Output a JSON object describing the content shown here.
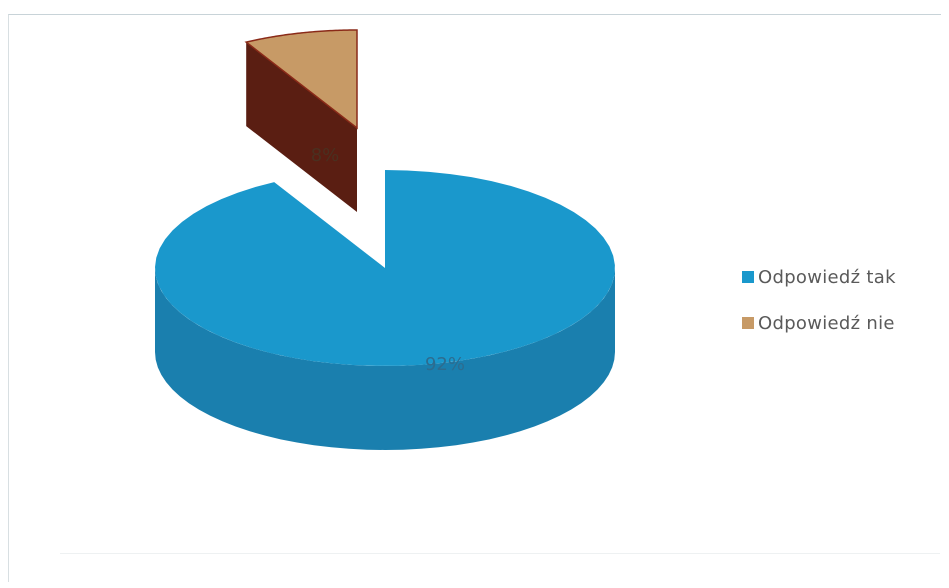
{
  "chart_data": {
    "type": "pie",
    "style": "3d-exploded",
    "slices": [
      {
        "label": "Odpowiedź tak",
        "value": 92,
        "data_label": "92%",
        "color": "#1a98cc",
        "side_color": "#1a7fae",
        "label_color": "#2d6c8f"
      },
      {
        "label": "Odpowiedź nie",
        "value": 8,
        "data_label": "8%",
        "color": "#c79a66",
        "side_color": "#5a1e12",
        "label_color": "#4a3020"
      }
    ],
    "legend": {
      "placement": "right",
      "items": [
        "Odpowiedź tak",
        "Odpowiedź nie"
      ]
    }
  }
}
